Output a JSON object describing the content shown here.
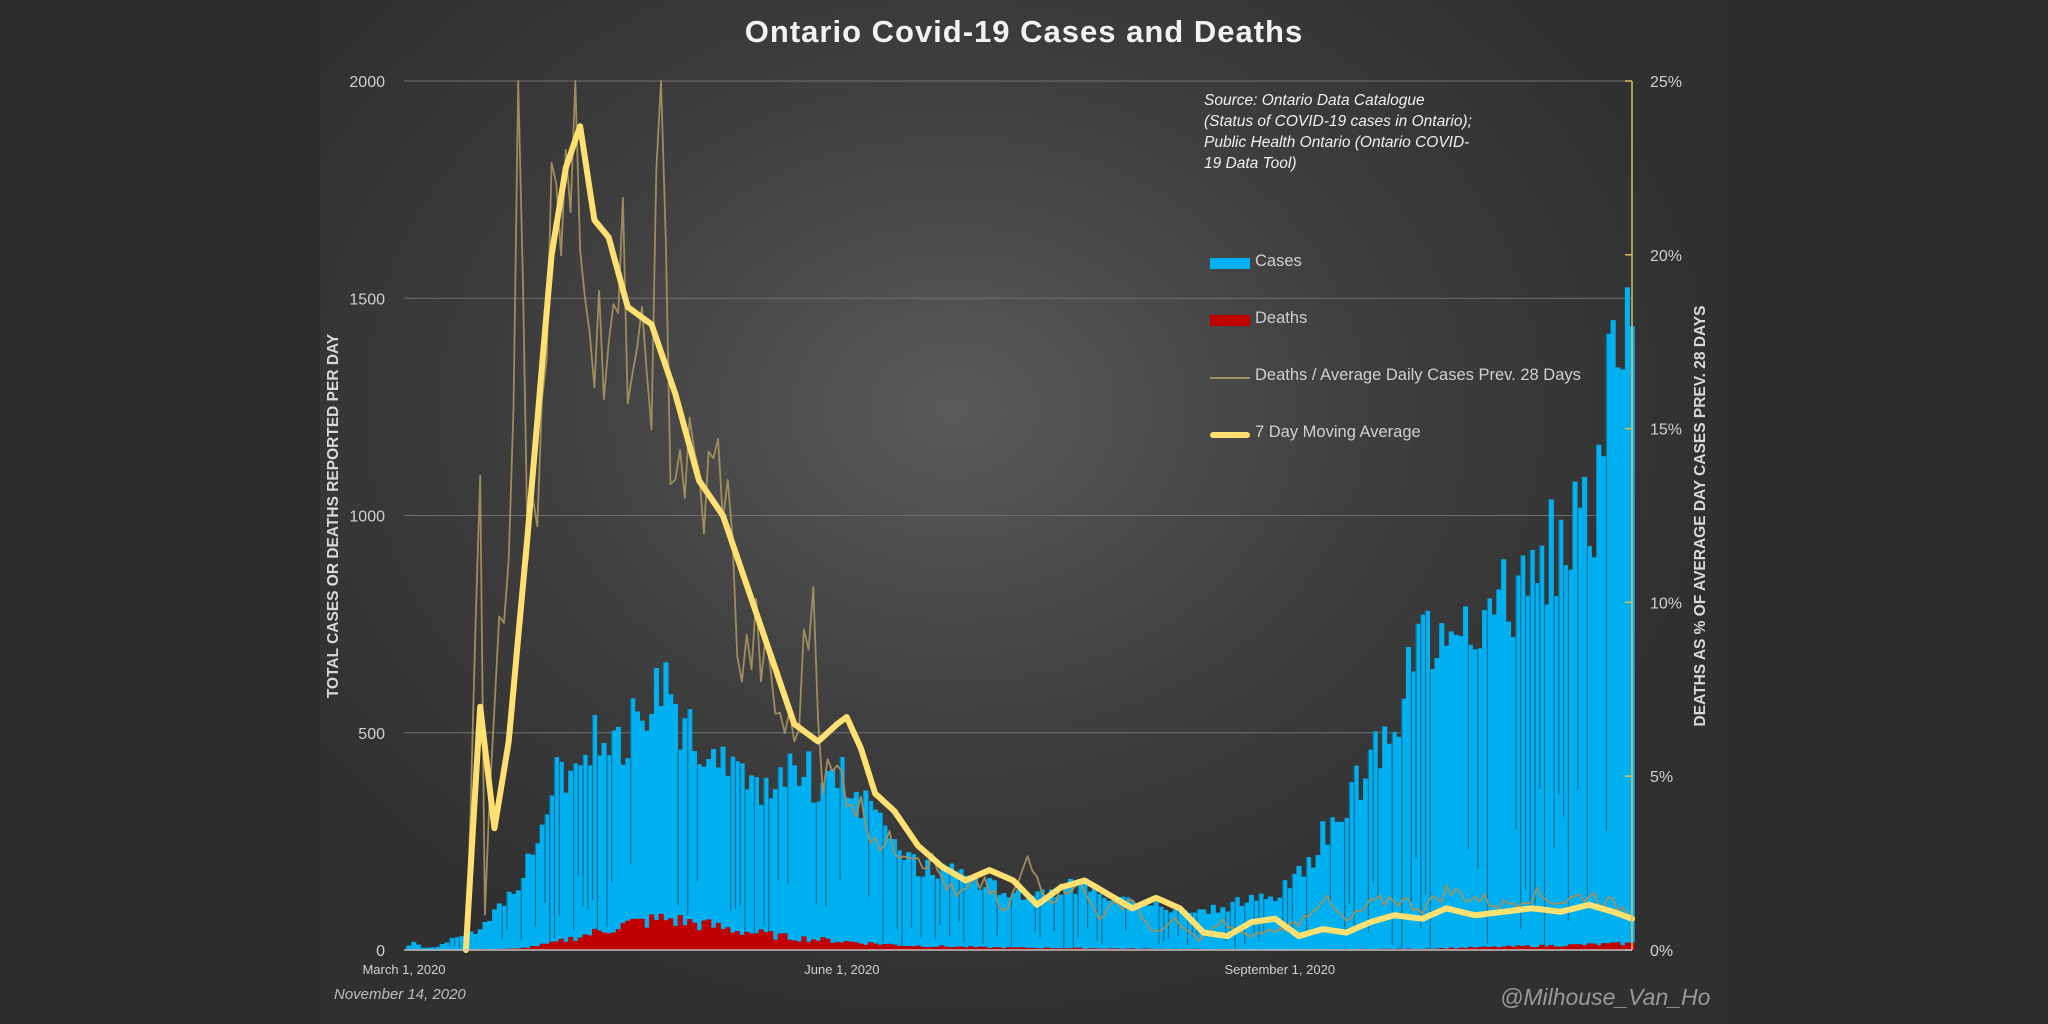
{
  "chart_data": {
    "type": "bar+line",
    "title": "Ontario Covid-19 Cases and Deaths",
    "source": "Source: Ontario Data Catalogue (Status of COVID-19 cases in Ontario); Public Health Ontario (Ontario COVID-19 Data Tool)",
    "date_label": "November 14, 2020",
    "credit": "@Milhouse_Van_Ho",
    "ylabel_left": "TOTAL CASES OR DEATHS REPORTED PER DAY",
    "ylabel_right": "DEATHS AS % OF AVERAGE DAY CASES PREV. 28 DAYS",
    "ylim_left": [
      0,
      2000
    ],
    "ylim_right": [
      0,
      25
    ],
    "y_ticks_left": [
      "0",
      "500",
      "1000",
      "1500",
      "2000"
    ],
    "y_ticks_right": [
      "0%",
      "5%",
      "10%",
      "15%",
      "20%",
      "25%"
    ],
    "x_start": "2020-03-01",
    "x_end": "2020-11-14",
    "x_ticks": [
      {
        "date": "2020-03-01",
        "label": "March 1, 2020"
      },
      {
        "date": "2020-06-01",
        "label": "June 1, 2020"
      },
      {
        "date": "2020-09-01",
        "label": "September 1, 2020"
      }
    ],
    "grid": true,
    "legend_position": "top-right",
    "colors": {
      "cases": "#00b0f0",
      "deaths": "#c00000",
      "ratio": "#a39060",
      "ma": "#ffe070"
    },
    "series": [
      {
        "name": "Cases",
        "axis": "left",
        "kind": "bar",
        "keypoints": [
          [
            "2020-03-01",
            0
          ],
          [
            "2020-03-03",
            20
          ],
          [
            "2020-03-05",
            5
          ],
          [
            "2020-03-08",
            8
          ],
          [
            "2020-03-12",
            30
          ],
          [
            "2020-03-16",
            40
          ],
          [
            "2020-03-19",
            70
          ],
          [
            "2020-03-22",
            110
          ],
          [
            "2020-03-26",
            170
          ],
          [
            "2020-03-29",
            250
          ],
          [
            "2020-04-01",
            380
          ],
          [
            "2020-04-05",
            430
          ],
          [
            "2020-04-09",
            480
          ],
          [
            "2020-04-12",
            510
          ],
          [
            "2020-04-15",
            470
          ],
          [
            "2020-04-19",
            550
          ],
          [
            "2020-04-23",
            600
          ],
          [
            "2020-04-25",
            640
          ],
          [
            "2020-04-29",
            500
          ],
          [
            "2020-05-03",
            480
          ],
          [
            "2020-05-07",
            420
          ],
          [
            "2020-05-11",
            380
          ],
          [
            "2020-05-15",
            340
          ],
          [
            "2020-05-20",
            390
          ],
          [
            "2020-05-24",
            420
          ],
          [
            "2020-05-28",
            360
          ],
          [
            "2020-06-01",
            400
          ],
          [
            "2020-06-05",
            350
          ],
          [
            "2020-06-10",
            320
          ],
          [
            "2020-06-15",
            200
          ],
          [
            "2020-06-20",
            180
          ],
          [
            "2020-06-25",
            190
          ],
          [
            "2020-07-01",
            150
          ],
          [
            "2020-07-10",
            130
          ],
          [
            "2020-07-20",
            150
          ],
          [
            "2020-07-31",
            120
          ],
          [
            "2020-08-10",
            90
          ],
          [
            "2020-08-20",
            100
          ],
          [
            "2020-09-01",
            130
          ],
          [
            "2020-09-07",
            200
          ],
          [
            "2020-09-12",
            300
          ],
          [
            "2020-09-18",
            400
          ],
          [
            "2020-09-24",
            490
          ],
          [
            "2020-09-28",
            650
          ],
          [
            "2020-10-02",
            730
          ],
          [
            "2020-10-08",
            800
          ],
          [
            "2020-10-14",
            780
          ],
          [
            "2020-10-20",
            820
          ],
          [
            "2020-10-26",
            880
          ],
          [
            "2020-11-01",
            980
          ],
          [
            "2020-11-06",
            1050
          ],
          [
            "2020-11-10",
            1350
          ],
          [
            "2020-11-13",
            1570
          ],
          [
            "2020-11-14",
            1400
          ]
        ]
      },
      {
        "name": "Deaths",
        "axis": "left",
        "kind": "bar",
        "keypoints": [
          [
            "2020-03-01",
            0
          ],
          [
            "2020-03-25",
            3
          ],
          [
            "2020-04-01",
            15
          ],
          [
            "2020-04-10",
            40
          ],
          [
            "2020-04-17",
            60
          ],
          [
            "2020-04-25",
            72
          ],
          [
            "2020-05-02",
            60
          ],
          [
            "2020-05-10",
            45
          ],
          [
            "2020-05-20",
            30
          ],
          [
            "2020-06-01",
            20
          ],
          [
            "2020-06-15",
            10
          ],
          [
            "2020-07-01",
            6
          ],
          [
            "2020-08-01",
            3
          ],
          [
            "2020-09-01",
            1
          ],
          [
            "2020-10-01",
            3
          ],
          [
            "2020-10-20",
            8
          ],
          [
            "2020-11-14",
            15
          ]
        ]
      },
      {
        "name": "Deaths / Average Daily Cases Prev. 28 Days",
        "axis": "right",
        "kind": "line",
        "keypoints": [
          [
            "2020-03-14",
            0
          ],
          [
            "2020-03-17",
            13.5
          ],
          [
            "2020-03-18",
            1
          ],
          [
            "2020-03-21",
            10
          ],
          [
            "2020-03-23",
            11.5
          ],
          [
            "2020-03-25",
            25
          ],
          [
            "2020-03-27",
            10
          ],
          [
            "2020-03-30",
            16
          ],
          [
            "2020-04-02",
            25
          ],
          [
            "2020-04-04",
            21
          ],
          [
            "2020-04-06",
            25
          ],
          [
            "2020-04-08",
            20
          ],
          [
            "2020-04-10",
            19
          ],
          [
            "2020-04-13",
            16
          ],
          [
            "2020-04-16",
            19
          ],
          [
            "2020-04-19",
            15.5
          ],
          [
            "2020-04-22",
            17.5
          ],
          [
            "2020-04-24",
            23
          ],
          [
            "2020-04-26",
            15
          ],
          [
            "2020-04-29",
            14
          ],
          [
            "2020-05-03",
            13
          ],
          [
            "2020-05-07",
            14
          ],
          [
            "2020-05-11",
            8
          ],
          [
            "2020-05-14",
            9
          ],
          [
            "2020-05-18",
            7
          ],
          [
            "2020-05-22",
            6
          ],
          [
            "2020-05-26",
            10.5
          ],
          [
            "2020-05-28",
            5
          ],
          [
            "2020-06-01",
            5
          ],
          [
            "2020-06-05",
            4
          ],
          [
            "2020-06-10",
            3
          ],
          [
            "2020-06-15",
            3
          ],
          [
            "2020-06-20",
            2.5
          ],
          [
            "2020-06-25",
            1.5
          ],
          [
            "2020-07-01",
            2
          ],
          [
            "2020-07-05",
            1
          ],
          [
            "2020-07-10",
            2.5
          ],
          [
            "2020-07-15",
            1.5
          ],
          [
            "2020-07-20",
            2
          ],
          [
            "2020-07-25",
            1
          ],
          [
            "2020-08-01",
            1.5
          ],
          [
            "2020-08-05",
            0.5
          ],
          [
            "2020-08-10",
            0.8
          ],
          [
            "2020-08-15",
            0.3
          ],
          [
            "2020-08-20",
            0.8
          ],
          [
            "2020-08-25",
            0.4
          ],
          [
            "2020-09-01",
            0.6
          ],
          [
            "2020-09-05",
            0.8
          ],
          [
            "2020-09-10",
            1.5
          ],
          [
            "2020-09-15",
            0.8
          ],
          [
            "2020-09-20",
            1.3
          ],
          [
            "2020-09-25",
            1.5
          ],
          [
            "2020-10-01",
            1.2
          ],
          [
            "2020-10-06",
            1.7
          ],
          [
            "2020-10-12",
            1.5
          ],
          [
            "2020-10-18",
            1.3
          ],
          [
            "2020-10-24",
            1.6
          ],
          [
            "2020-10-30",
            1.4
          ],
          [
            "2020-11-05",
            1.6
          ],
          [
            "2020-11-10",
            1.3
          ],
          [
            "2020-11-14",
            1.1
          ]
        ]
      },
      {
        "name": "7 Day Moving Average",
        "axis": "right",
        "kind": "line",
        "keypoints": [
          [
            "2020-03-14",
            0
          ],
          [
            "2020-03-17",
            7
          ],
          [
            "2020-03-20",
            3.5
          ],
          [
            "2020-03-23",
            6
          ],
          [
            "2020-03-27",
            12
          ],
          [
            "2020-04-01",
            20
          ],
          [
            "2020-04-04",
            22.5
          ],
          [
            "2020-04-07",
            23.7
          ],
          [
            "2020-04-10",
            21
          ],
          [
            "2020-04-13",
            20.5
          ],
          [
            "2020-04-17",
            18.5
          ],
          [
            "2020-04-22",
            18
          ],
          [
            "2020-04-27",
            16
          ],
          [
            "2020-05-02",
            13.5
          ],
          [
            "2020-05-07",
            12.5
          ],
          [
            "2020-05-12",
            10.5
          ],
          [
            "2020-05-17",
            8.5
          ],
          [
            "2020-05-22",
            6.5
          ],
          [
            "2020-05-27",
            6
          ],
          [
            "2020-05-31",
            6.5
          ],
          [
            "2020-06-02",
            6.7
          ],
          [
            "2020-06-05",
            5.8
          ],
          [
            "2020-06-08",
            4.5
          ],
          [
            "2020-06-12",
            4
          ],
          [
            "2020-06-17",
            3
          ],
          [
            "2020-06-22",
            2.4
          ],
          [
            "2020-06-27",
            2
          ],
          [
            "2020-07-02",
            2.3
          ],
          [
            "2020-07-07",
            2
          ],
          [
            "2020-07-12",
            1.3
          ],
          [
            "2020-07-17",
            1.8
          ],
          [
            "2020-07-22",
            2
          ],
          [
            "2020-07-27",
            1.6
          ],
          [
            "2020-08-01",
            1.2
          ],
          [
            "2020-08-06",
            1.5
          ],
          [
            "2020-08-11",
            1.2
          ],
          [
            "2020-08-16",
            0.5
          ],
          [
            "2020-08-21",
            0.4
          ],
          [
            "2020-08-26",
            0.8
          ],
          [
            "2020-08-31",
            0.9
          ],
          [
            "2020-09-05",
            0.4
          ],
          [
            "2020-09-10",
            0.6
          ],
          [
            "2020-09-15",
            0.5
          ],
          [
            "2020-09-20",
            0.8
          ],
          [
            "2020-09-25",
            1
          ],
          [
            "2020-10-01",
            0.9
          ],
          [
            "2020-10-06",
            1.2
          ],
          [
            "2020-10-12",
            1
          ],
          [
            "2020-10-18",
            1.1
          ],
          [
            "2020-10-24",
            1.2
          ],
          [
            "2020-10-30",
            1.1
          ],
          [
            "2020-11-05",
            1.3
          ],
          [
            "2020-11-10",
            1.1
          ],
          [
            "2020-11-14",
            0.9
          ]
        ]
      }
    ]
  }
}
